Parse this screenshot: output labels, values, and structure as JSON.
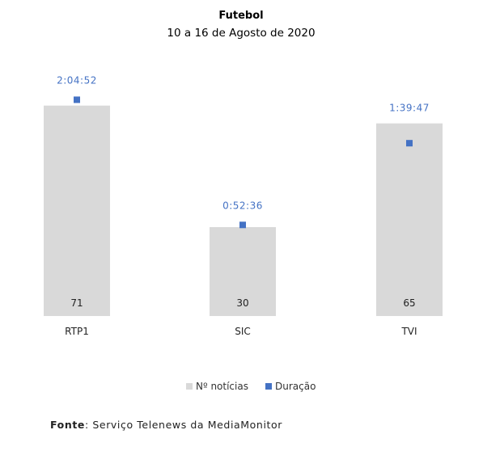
{
  "chart_data": {
    "type": "bar",
    "title": "Futebol",
    "subtitle": "10 a 16 de Agosto de 2020",
    "categories": [
      "RTP1",
      "SIC",
      "TVI"
    ],
    "series": [
      {
        "name": "Nº notícias",
        "type": "bar",
        "color": "#d9d9d9",
        "values": [
          71,
          30,
          65
        ]
      },
      {
        "name": "Duração",
        "type": "scatter",
        "color": "#4472c4",
        "values_seconds": [
          7492,
          3156,
          5987
        ],
        "labels": [
          "2:04:52",
          "0:52:36",
          "1:39:47"
        ]
      }
    ],
    "bar_ylim": [
      0,
      75
    ],
    "duration_ylim_seconds": [
      0,
      7700
    ],
    "legend": {
      "position": "bottom",
      "entries": [
        "Nº notícias",
        "Duração"
      ]
    },
    "grid": false
  },
  "source": {
    "label": "Fonte",
    "text": ": Serviço Telenews da MediaMonitor"
  }
}
